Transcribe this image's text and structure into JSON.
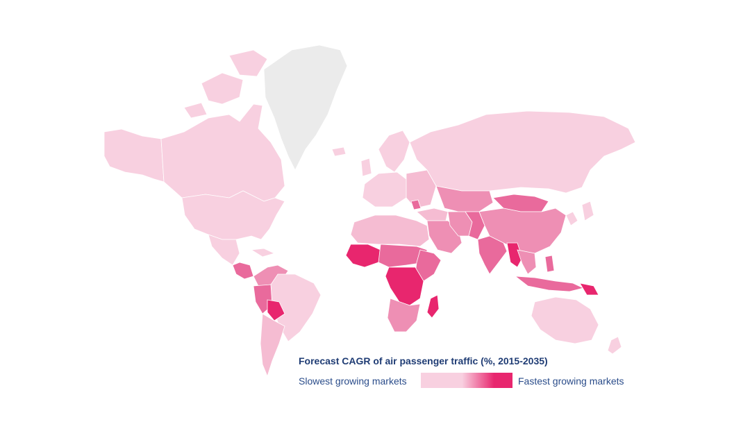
{
  "legend": {
    "title": "Forecast CAGR of air passenger traffic (%, 2015-2035)",
    "min_label": "Slowest growing markets",
    "max_label": "Fastest growing markets"
  },
  "colors": {
    "slowest": "#f8d0e0",
    "low": "#f5bcd2",
    "medium": "#ee8fb4",
    "high": "#e96a9c",
    "fastest": "#e8266e",
    "no_data": "#ebebeb",
    "border": "#ffffff"
  }
}
